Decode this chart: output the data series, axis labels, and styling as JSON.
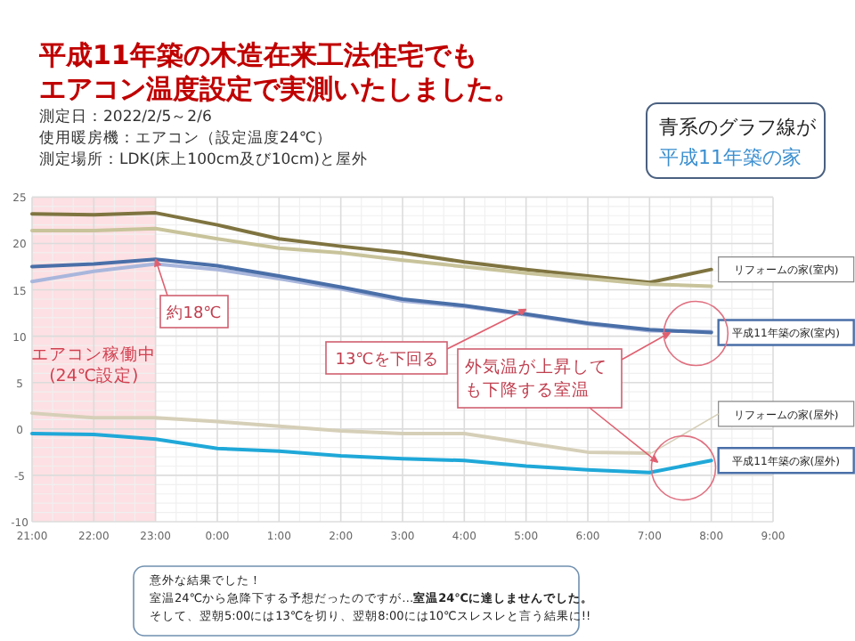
{
  "chart_data": {
    "type": "line",
    "title": "平成11年築の木造在来工法住宅でもエアコン温度設定で実測いたしました。",
    "subtitle": "測定日：2022/2/5～2/6",
    "x": [
      "2022-02-05T21:00",
      "2022-02-05T22:00",
      "2022-02-05T23:00",
      "2022-02-06T00:00",
      "2022-02-06T01:00",
      "2022-02-06T02:00",
      "2022-02-06T03:00",
      "2022-02-06T04:00",
      "2022-02-06T05:00",
      "2022-02-06T06:00",
      "2022-02-06T07:00",
      "2022-02-06T08:00"
    ],
    "series": [
      {
        "name": "リフォームの家(室内)",
        "color": "#7f7440",
        "values": [
          23.2,
          23.1,
          23.3,
          22.0,
          20.5,
          19.7,
          19.0,
          18.0,
          17.2,
          16.5,
          15.8,
          17.2
        ]
      },
      {
        "color": "#c8c39a",
        "values": [
          21.4,
          21.4,
          21.6,
          20.5,
          19.5,
          19.0,
          18.2,
          17.5,
          16.8,
          16.2,
          15.6,
          15.4
        ]
      },
      {
        "color": "#a9b6dc",
        "values": [
          15.9,
          17.0,
          17.8,
          17.2,
          16.2,
          15.1,
          13.8,
          13.2,
          12.3,
          11.3,
          10.6,
          10.5
        ]
      },
      {
        "name": "平成11年築の家(室内)",
        "color": "#4a6fa8",
        "values": [
          17.5,
          17.8,
          18.3,
          17.6,
          16.5,
          15.3,
          14.0,
          13.3,
          12.4,
          11.4,
          10.7,
          10.4
        ]
      },
      {
        "name": "リフォームの家(屋外)",
        "color": "#d6cfb8",
        "values": [
          1.7,
          1.2,
          1.2,
          0.8,
          0.3,
          -0.2,
          -0.5,
          -0.5,
          -1.5,
          -2.5,
          -2.6,
          null
        ]
      },
      {
        "name": "平成11年築の家(屋外)",
        "color": "#1fa8d8",
        "values": [
          -0.5,
          -0.6,
          -1.1,
          -2.1,
          -2.4,
          -2.9,
          -3.2,
          -3.4,
          -4.0,
          -4.4,
          -4.7,
          -3.4
        ]
      }
    ],
    "xlim": [
      "2022-02-05T21:00",
      "2022-02-06T09:00"
    ],
    "xticks": [
      {
        "value": "2022-02-05T21:00",
        "label": "21:00"
      },
      {
        "value": "2022-02-05T22:00",
        "label": "22:00"
      },
      {
        "value": "2022-02-05T23:00",
        "label": "23:00"
      },
      {
        "value": "2022-02-06T00:00",
        "label": "0:00"
      },
      {
        "value": "2022-02-06T01:00",
        "label": "1:00"
      },
      {
        "value": "2022-02-06T02:00",
        "label": "2:00"
      },
      {
        "value": "2022-02-06T03:00",
        "label": "3:00"
      },
      {
        "value": "2022-02-06T04:00",
        "label": "4:00"
      },
      {
        "value": "2022-02-06T05:00",
        "label": "5:00"
      },
      {
        "value": "2022-02-06T06:00",
        "label": "6:00"
      },
      {
        "value": "2022-02-06T07:00",
        "label": "7:00"
      },
      {
        "value": "2022-02-06T08:00",
        "label": "8:00"
      },
      {
        "value": "2022-02-06T09:00",
        "label": "9:00"
      }
    ],
    "ylim": [
      -10,
      25
    ],
    "yticks": [
      -10,
      -5,
      0,
      5,
      10,
      15,
      20,
      25
    ],
    "grid": true,
    "bands": [
      {
        "axis": "x",
        "from": "2022-02-05T21:00",
        "to": "2022-02-05T23:00",
        "label": "エアコン稼働中\n(24℃設定)",
        "color": "#fde0e3"
      }
    ],
    "annotations": [
      "青系のグラフ線が平成11年築の家",
      {
        "text": "約18℃",
        "x": "2022-02-05T23:00",
        "y": 18.3
      },
      {
        "text": "13℃を下回る",
        "x": "2022-02-06T05:00",
        "y": 12.9
      },
      "外気温が上昇しても下降する室温",
      "使用暖房機：エアコン（設定温度24℃）",
      "測定場所：LDK(床上100cm及び10cm)と屋外",
      "意外な結果でした！",
      "室温24℃から急降下する予想だったのですが…**室温24℃に達しませんでした。**",
      "そして、翌朝5:00には13℃を切り、翌朝8:00には10℃スレスレと言う結果に!!"
    ]
  }
}
